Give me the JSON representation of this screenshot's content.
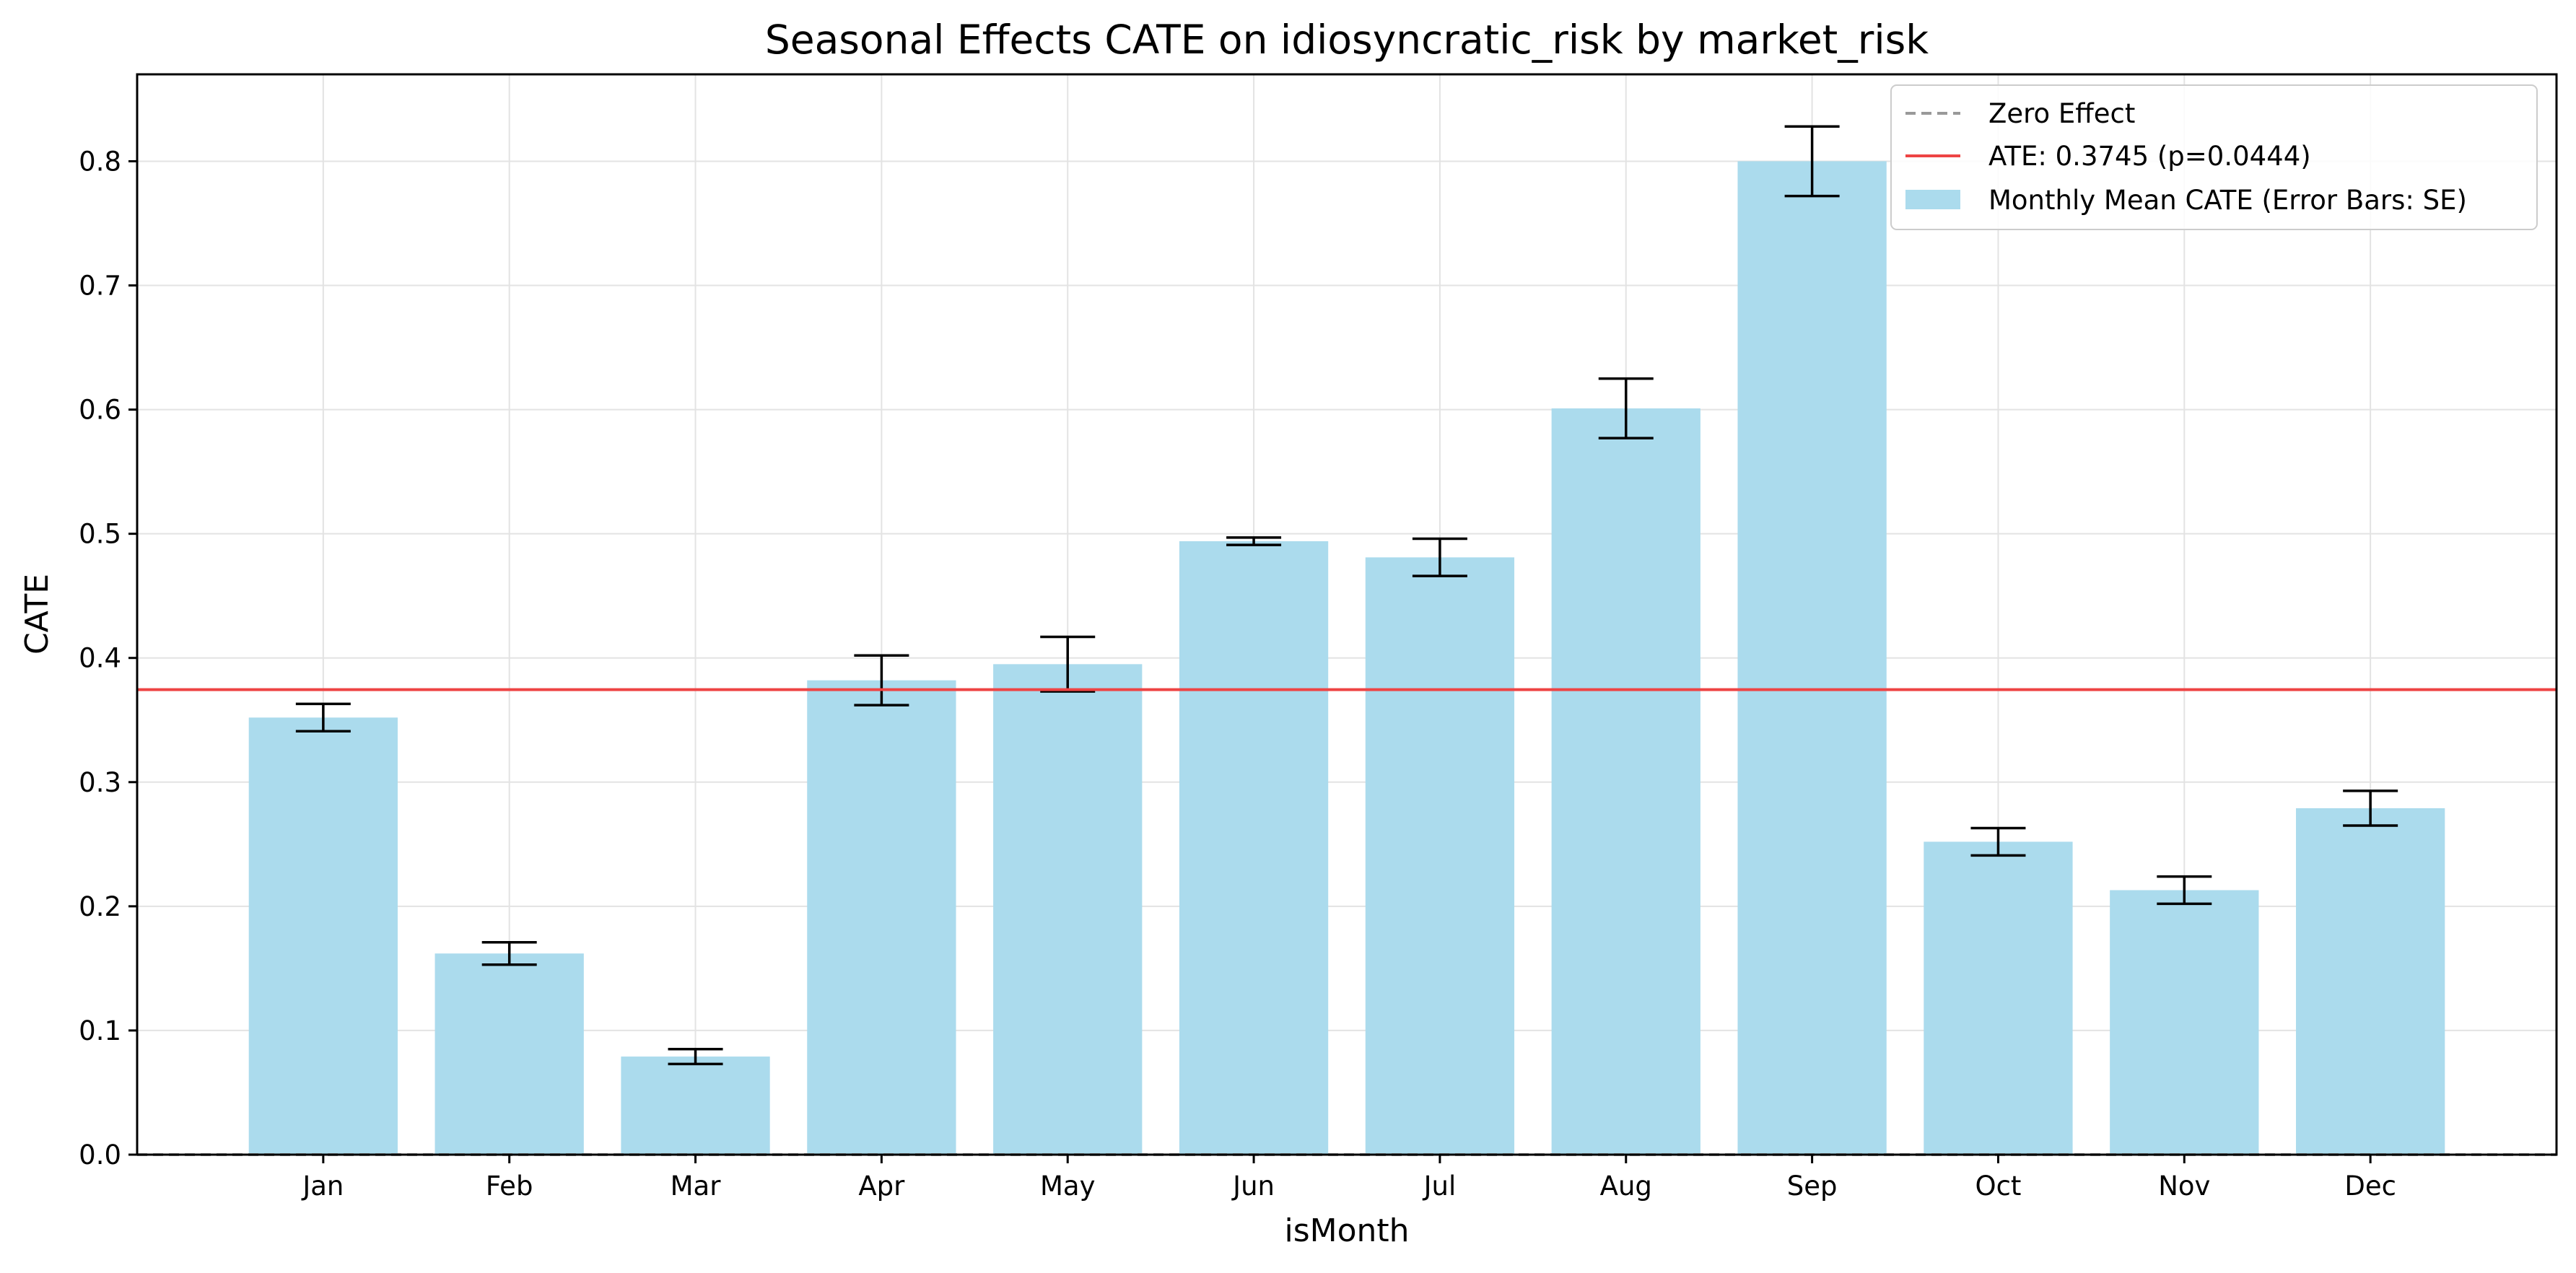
{
  "chart_data": {
    "type": "bar",
    "title": "Seasonal Effects CATE  on idiosyncratic_risk by market_risk",
    "xlabel": "isMonth",
    "ylabel": "CATE",
    "categories": [
      "Jan",
      "Feb",
      "Mar",
      "Apr",
      "May",
      "Jun",
      "Jul",
      "Aug",
      "Sep",
      "Oct",
      "Nov",
      "Dec"
    ],
    "values": [
      0.352,
      0.162,
      0.079,
      0.382,
      0.395,
      0.494,
      0.481,
      0.601,
      0.8,
      0.252,
      0.213,
      0.279
    ],
    "error_se": [
      0.011,
      0.009,
      0.006,
      0.02,
      0.022,
      0.003,
      0.015,
      0.024,
      0.028,
      0.011,
      0.011,
      0.014
    ],
    "ylim": [
      0.0,
      0.87
    ],
    "yticks": [
      0.0,
      0.1,
      0.2,
      0.3,
      0.4,
      0.5,
      0.6,
      0.7,
      0.8
    ],
    "ytick_labels": [
      "0.0",
      "0.1",
      "0.2",
      "0.3",
      "0.4",
      "0.5",
      "0.6",
      "0.7",
      "0.8"
    ],
    "reference_lines": {
      "zero_effect": 0.0,
      "ate": 0.3745
    },
    "grid": true,
    "legend": {
      "placement": "top-right",
      "entries": [
        {
          "label": "Zero Effect",
          "style": "dashed-line",
          "color": "#999999"
        },
        {
          "label": "ATE: 0.3745 (p=0.0444)",
          "style": "line",
          "color": "#ee4444"
        },
        {
          "label": "Monthly Mean CATE (Error Bars: SE)",
          "style": "patch",
          "color": "#abdbed"
        }
      ]
    },
    "colors": {
      "bar": "#abdbed",
      "ate_line": "#ee4444",
      "zero_line": "#999999",
      "error_bar": "#000000",
      "grid": "#e3e3e3"
    }
  }
}
